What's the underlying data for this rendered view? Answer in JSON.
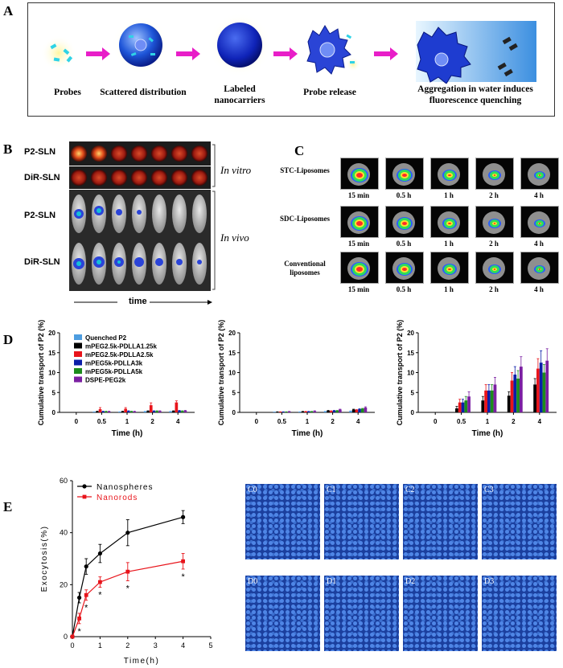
{
  "panels": {
    "a": "A",
    "b": "B",
    "c": "C",
    "d": "D",
    "e": "E"
  },
  "panel_a": {
    "captions": [
      "Probes",
      "Scattered distribution",
      "Labeled nanocarriers",
      "Probe release",
      "Aggregation in water induces fluorescence quenching"
    ]
  },
  "panel_b": {
    "rows": [
      "P2-SLN",
      "DiR-SLN",
      "P2-SLN",
      "DiR-SLN"
    ],
    "in_vitro": "In vitro",
    "in_vivo": "In vivo",
    "time_label": "time"
  },
  "panel_c": {
    "rows": [
      "STC-Liposomes",
      "SDC-Liposomes",
      "Conventional liposomes"
    ],
    "times": [
      "15 min",
      "0.5 h",
      "1 h",
      "2 h",
      "4 h"
    ]
  },
  "panel_e_images": [
    "C0",
    "C1",
    "C2",
    "C3",
    "D0",
    "D1",
    "D2",
    "D3"
  ],
  "chart_data": [
    {
      "type": "bar",
      "xlabel": "Time (h)",
      "ylabel": "Cumulative transport of P2 (%)",
      "ylim": [
        0,
        20
      ],
      "yticks": [
        0,
        5,
        10,
        15,
        20
      ],
      "categories": [
        "0",
        "0.5",
        "1",
        "2",
        "4"
      ],
      "legend_position": "top-left",
      "series": [
        {
          "name": "Quenched P2",
          "color": "#4d9de0",
          "values": [
            0,
            0.1,
            0.1,
            0.2,
            0.2
          ],
          "errors": [
            0,
            0.05,
            0.05,
            0.05,
            0.05
          ]
        },
        {
          "name": "mPEG2.5k-PDLLA1.25k",
          "color": "#000000",
          "values": [
            0,
            0.2,
            0.2,
            0.3,
            0.3
          ],
          "errors": [
            0,
            0.1,
            0.1,
            0.1,
            0.1
          ]
        },
        {
          "name": "mPEG2.5k-PDLLA2.5k",
          "color": "#e8141b",
          "values": [
            0,
            0.8,
            0.9,
            1.8,
            2.5
          ],
          "errors": [
            0,
            0.4,
            0.3,
            0.6,
            0.4
          ]
        },
        {
          "name": "mPEG5k-PDLLA3k",
          "color": "#0b1ea8",
          "values": [
            0,
            0.2,
            0.3,
            0.3,
            0.4
          ],
          "errors": [
            0,
            0.1,
            0.1,
            0.1,
            0.1
          ]
        },
        {
          "name": "mPEG5k-PDLLA5k",
          "color": "#1c8c1c",
          "values": [
            0,
            0.2,
            0.2,
            0.3,
            0.3
          ],
          "errors": [
            0,
            0.1,
            0.1,
            0.1,
            0.1
          ]
        },
        {
          "name": "DSPE-PEG2k",
          "color": "#7b1fa2",
          "values": [
            0,
            0.2,
            0.2,
            0.3,
            0.4
          ],
          "errors": [
            0,
            0.1,
            0.1,
            0.1,
            0.1
          ]
        }
      ]
    },
    {
      "type": "bar",
      "xlabel": "Time (h)",
      "ylabel": "Cumulative transport of P2 (%)",
      "ylim": [
        0,
        20
      ],
      "yticks": [
        0,
        5,
        10,
        15,
        20
      ],
      "categories": [
        "0",
        "0.5",
        "1",
        "2",
        "4"
      ],
      "series": [
        {
          "color": "#4d9de0",
          "values": [
            0,
            0.05,
            0.1,
            0.2,
            0.3
          ],
          "errors": [
            0,
            0.05,
            0.05,
            0.05,
            0.05
          ]
        },
        {
          "color": "#000000",
          "values": [
            0,
            0.1,
            0.2,
            0.4,
            0.7
          ],
          "errors": [
            0,
            0.05,
            0.05,
            0.1,
            0.1
          ]
        },
        {
          "color": "#e8141b",
          "values": [
            0,
            0.1,
            0.2,
            0.3,
            0.6
          ],
          "errors": [
            0,
            0.05,
            0.05,
            0.1,
            0.1
          ]
        },
        {
          "color": "#0b1ea8",
          "values": [
            0,
            0.1,
            0.2,
            0.4,
            0.8
          ],
          "errors": [
            0,
            0.05,
            0.05,
            0.1,
            0.1
          ]
        },
        {
          "color": "#1c8c1c",
          "values": [
            0,
            0.1,
            0.2,
            0.4,
            0.9
          ],
          "errors": [
            0,
            0.05,
            0.05,
            0.1,
            0.1
          ]
        },
        {
          "color": "#7b1fa2",
          "values": [
            0,
            0.2,
            0.3,
            0.7,
            1.2
          ],
          "errors": [
            0,
            0.05,
            0.1,
            0.1,
            0.2
          ]
        }
      ]
    },
    {
      "type": "bar",
      "xlabel": "Time (h)",
      "ylabel": "Cumulative transport of P2 (%)",
      "ylim": [
        0,
        20
      ],
      "yticks": [
        0,
        5,
        10,
        15,
        20
      ],
      "categories": [
        "0",
        "0.5",
        "1",
        "2",
        "4"
      ],
      "series": [
        {
          "color": "#4d9de0",
          "values": [
            0,
            0,
            0,
            0,
            0
          ],
          "errors": [
            0,
            0,
            0,
            0,
            0
          ]
        },
        {
          "color": "#000000",
          "values": [
            0,
            1,
            3,
            4.2,
            7
          ],
          "errors": [
            0,
            0.5,
            1.0,
            1.0,
            1.5
          ]
        },
        {
          "color": "#e8141b",
          "values": [
            0,
            2.5,
            5.5,
            8,
            11
          ],
          "errors": [
            0,
            0.8,
            1.5,
            2.0,
            2.5
          ]
        },
        {
          "color": "#0b1ea8",
          "values": [
            0,
            2.5,
            5.5,
            9.5,
            12.5
          ],
          "errors": [
            0,
            0.8,
            1.5,
            2.0,
            3.0
          ]
        },
        {
          "color": "#1c8c1c",
          "values": [
            0,
            3,
            5.5,
            8.5,
            10
          ],
          "errors": [
            0,
            1.0,
            1.5,
            2.0,
            2.0
          ]
        },
        {
          "color": "#7b1fa2",
          "values": [
            0,
            4,
            7,
            11.5,
            13
          ],
          "errors": [
            0,
            1.2,
            1.8,
            2.5,
            3.0
          ]
        }
      ]
    },
    {
      "type": "line",
      "xlabel": "Time(h)",
      "ylabel": "Exocytosis(%)",
      "xlim": [
        0,
        5
      ],
      "ylim": [
        0,
        60
      ],
      "xticks": [
        0,
        1,
        2,
        3,
        4,
        5
      ],
      "yticks": [
        0,
        20,
        40,
        60
      ],
      "legend_position": "top-left",
      "series": [
        {
          "name": "Nanospheres",
          "color": "#000000",
          "marker": "circle",
          "x": [
            0,
            0.25,
            0.5,
            1,
            2,
            4
          ],
          "y": [
            0,
            15,
            27,
            32,
            40,
            46
          ],
          "errors": [
            0,
            2,
            3,
            3.5,
            5,
            2.5
          ]
        },
        {
          "name": "Nanorods",
          "color": "#e8141b",
          "marker": "square",
          "x": [
            0,
            0.25,
            0.5,
            1,
            2,
            4
          ],
          "y": [
            0,
            7,
            16,
            21,
            25,
            29
          ],
          "errors": [
            0,
            2,
            2,
            2,
            3.5,
            3
          ]
        }
      ],
      "annotations": [
        {
          "x": 0.25,
          "text": "*"
        },
        {
          "x": 0.5,
          "text": "*"
        },
        {
          "x": 1,
          "text": "*"
        },
        {
          "x": 2,
          "text": "*"
        },
        {
          "x": 4,
          "text": "*"
        }
      ]
    }
  ]
}
